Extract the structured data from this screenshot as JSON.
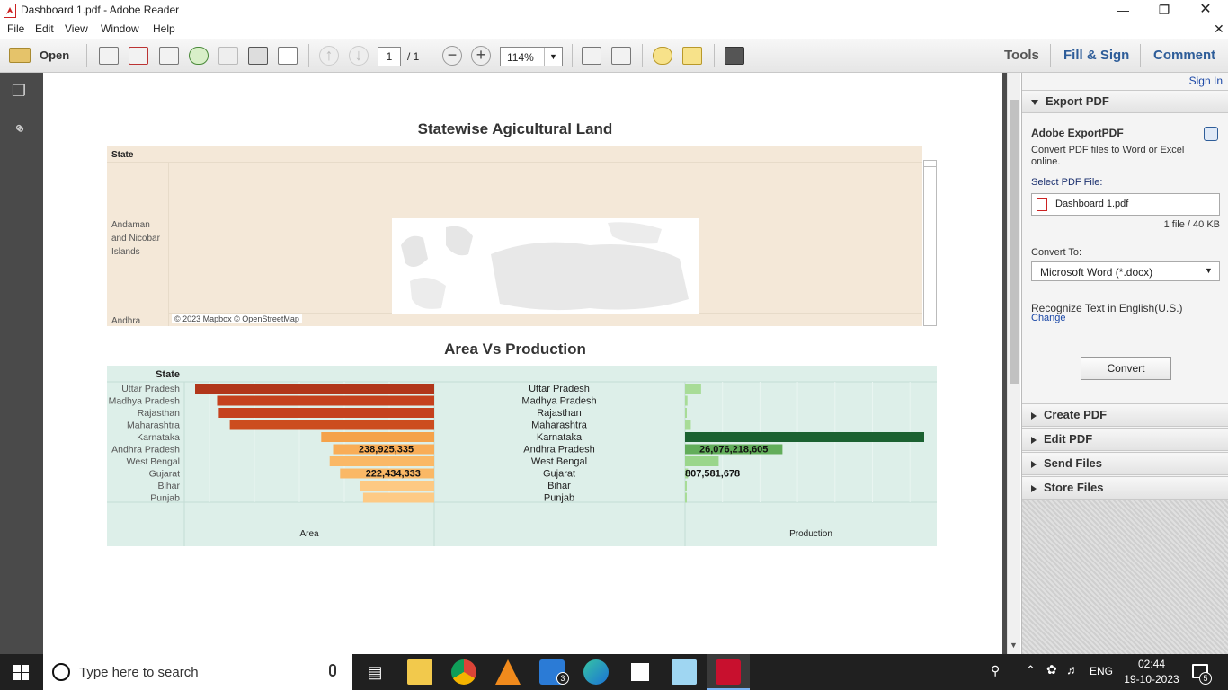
{
  "window": {
    "title": "Dashboard 1.pdf - Adobe Reader"
  },
  "menu": [
    "File",
    "Edit",
    "View",
    "Window",
    "Help"
  ],
  "toolbar": {
    "open_label": "Open",
    "page_current": "1",
    "page_total": "/ 1",
    "zoom": "114%",
    "tools": "Tools",
    "fill_sign": "Fill & Sign",
    "comment": "Comment"
  },
  "document": {
    "map_title": "Statewise Agicultural Land",
    "map_state_header": "State",
    "map_rows": [
      "Andaman and Nicobar Islands",
      "Andhra"
    ],
    "map_attribution": "© 2023 Mapbox © OpenStreetMap",
    "chart_title": "Area Vs Production",
    "chart_state_header": "State",
    "area_axis_label": "Area",
    "production_axis_label": "Production"
  },
  "chart_data": {
    "type": "bar",
    "title": "Area Vs Production",
    "categories": [
      "Uttar Pradesh",
      "Madhya Pradesh",
      "Rajasthan",
      "Maharashtra",
      "Karnataka",
      "Andhra Pradesh",
      "West Bengal",
      "Gujarat",
      "Bihar",
      "Punjab"
    ],
    "series": [
      {
        "name": "Area",
        "values": [
          565000000,
          513000000,
          509000000,
          483000000,
          267000000,
          238925335,
          247000000,
          222434333,
          175000000,
          168000000
        ],
        "labels": [
          "",
          "",
          "",
          "",
          "",
          "238,925,335",
          "",
          "222,434,333",
          "",
          ""
        ]
      },
      {
        "name": "Production",
        "values": [
          4300000000,
          650000000,
          450000000,
          1550000000,
          64000000000,
          26076218605,
          9000000000,
          807581678,
          450000000,
          450000000
        ],
        "labels": [
          "",
          "",
          "",
          "",
          "",
          "26,076,218,605",
          "",
          "807,581,678",
          "",
          ""
        ]
      }
    ],
    "xlabel_left": "Area",
    "xlabel_right": "Production",
    "area_colors": [
      "#b1361a",
      "#c5411d",
      "#c5411d",
      "#cc4d1f",
      "#f5a24a",
      "#f9ad57",
      "#fab866",
      "#fab866",
      "#fdc983",
      "#fdca85"
    ],
    "production_colors": [
      "#a8dc97",
      "#a8dc97",
      "#a8dc97",
      "#a8dc97",
      "#1b6131",
      "#62ad5a",
      "#9ad68b",
      "#a8dc97",
      "#a8dc97",
      "#a8dc97"
    ]
  },
  "right_panel": {
    "sign_in": "Sign In",
    "export_pdf": "Export PDF",
    "adobe_exportpdf": "Adobe ExportPDF",
    "desc": "Convert PDF files to Word or Excel online.",
    "select_label": "Select PDF File:",
    "file_name": "Dashboard 1.pdf",
    "file_info": "1 file / 40 KB",
    "convert_to_label": "Convert To:",
    "convert_to_value": "Microsoft Word (*.docx)",
    "recognize": "Recognize Text in English(U.S.)",
    "change": "Change",
    "convert_button": "Convert",
    "sections": [
      "Create PDF",
      "Edit PDF",
      "Send Files",
      "Store Files"
    ]
  },
  "taskbar": {
    "search_placeholder": "Type here to search",
    "language": "ENG",
    "time": "02:44",
    "date": "19-10-2023",
    "mail_badge": "3",
    "notif_badge": "5"
  }
}
